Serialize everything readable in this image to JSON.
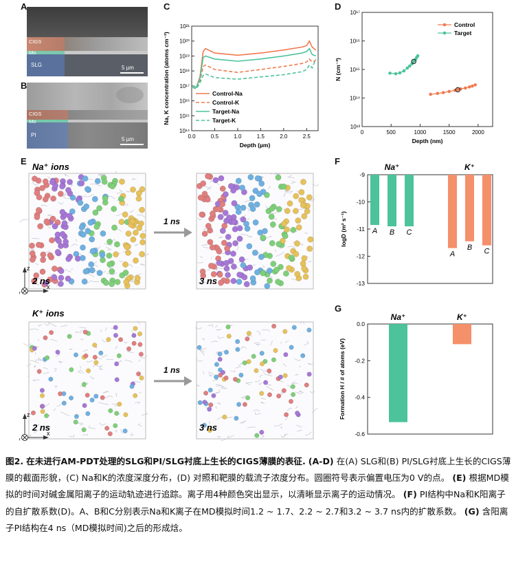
{
  "panels": {
    "A": {
      "label": "A",
      "layers": [
        "CIGS",
        "Mo",
        "SLG"
      ],
      "scale": "5 µm"
    },
    "B": {
      "label": "B",
      "layers": [
        "CIGS",
        "Mo",
        "PI"
      ],
      "scale": "5 µm"
    },
    "E": {
      "label": "E",
      "na_title": "Na⁺ ions",
      "k_title": "K⁺ ions",
      "arrow_label": "1 ns",
      "time_left": "2 ns",
      "time_right": "3 ns",
      "axis_z": "z",
      "axis_y": "y",
      "axis_x": "x"
    },
    "F": {
      "label": "F"
    },
    "G": {
      "label": "G"
    },
    "C": {
      "label": "C"
    },
    "D": {
      "label": "D"
    }
  },
  "chart_data": [
    {
      "id": "C",
      "type": "line",
      "xlabel": "Depth (µm)",
      "ylabel": "Na, K concentration (atoms cm⁻³)",
      "xlim": [
        0,
        2.75
      ],
      "ylim_log10": [
        14,
        21
      ],
      "xticks": [
        "0.0",
        "0.5",
        "1.0",
        "1.5",
        "2.0",
        "2.5"
      ],
      "yticks": [
        "10¹⁴",
        "10¹⁵",
        "10¹⁶",
        "10¹⁷",
        "10¹⁸",
        "10¹⁹",
        "10²⁰",
        "10²¹"
      ],
      "legend_position": "bottom-left",
      "series": [
        {
          "name": "Control-Na",
          "color": "#f07a4f",
          "dash": false,
          "x": [
            0.02,
            0.1,
            0.18,
            0.25,
            0.3,
            0.5,
            1.0,
            1.5,
            2.0,
            2.4,
            2.5,
            2.56,
            2.62,
            2.7
          ],
          "log10y": [
            17.0,
            16.9,
            17.6,
            19.3,
            19.5,
            19.2,
            19.05,
            19.2,
            19.4,
            19.6,
            19.7,
            20.0,
            19.6,
            19.4
          ]
        },
        {
          "name": "Control-K",
          "color": "#f07a4f",
          "dash": true,
          "x": [
            0.02,
            0.1,
            0.18,
            0.25,
            0.3,
            0.5,
            1.0,
            1.5,
            2.0,
            2.4,
            2.5,
            2.56,
            2.62,
            2.7
          ],
          "log10y": [
            16.9,
            16.8,
            17.3,
            18.3,
            18.4,
            18.1,
            17.9,
            18.1,
            18.3,
            18.5,
            18.6,
            18.8,
            18.6,
            18.7
          ]
        },
        {
          "name": "Target-Na",
          "color": "#4cc39a",
          "dash": false,
          "x": [
            0.02,
            0.1,
            0.18,
            0.25,
            0.3,
            0.5,
            1.0,
            1.5,
            2.0,
            2.4,
            2.5,
            2.56,
            2.62,
            2.7
          ],
          "log10y": [
            17.0,
            16.9,
            17.5,
            18.9,
            19.0,
            18.8,
            18.65,
            18.8,
            19.0,
            19.2,
            19.3,
            19.5,
            19.1,
            19.0
          ]
        },
        {
          "name": "Target-K",
          "color": "#4cc39a",
          "dash": true,
          "x": [
            0.02,
            0.1,
            0.18,
            0.25,
            0.3,
            0.5,
            1.0,
            1.5,
            2.0,
            2.4,
            2.5,
            2.56,
            2.62,
            2.7
          ],
          "log10y": [
            16.9,
            16.8,
            17.2,
            17.7,
            17.8,
            17.55,
            17.45,
            17.6,
            17.75,
            17.95,
            18.1,
            18.4,
            18.2,
            18.8
          ]
        }
      ]
    },
    {
      "id": "D",
      "type": "scatter",
      "xlabel": "Depth (nm)",
      "ylabel": "N (cm⁻³)",
      "xlim": [
        0,
        2250
      ],
      "ylim_log10": [
        13,
        17
      ],
      "xticks": [
        "0",
        "500",
        "1000",
        "1500",
        "2000"
      ],
      "yticks": [
        "10¹³",
        "10¹⁴",
        "10¹⁵",
        "10¹⁶",
        "10¹⁷"
      ],
      "legend_position": "top-right",
      "series": [
        {
          "name": "Control",
          "color": "#f07a4f",
          "x": [
            1180,
            1300,
            1400,
            1500,
            1600,
            1650,
            1700,
            1780,
            1850,
            1900,
            1950
          ],
          "log10y": [
            14.13,
            14.16,
            14.19,
            14.23,
            14.27,
            14.29,
            14.32,
            14.35,
            14.39,
            14.42,
            14.46
          ],
          "zero_bias_index": 5
        },
        {
          "name": "Target",
          "color": "#4cc39a",
          "x": [
            480,
            580,
            650,
            720,
            780,
            820,
            860,
            890,
            920,
            940,
            960
          ],
          "log10y": [
            14.87,
            14.85,
            14.88,
            14.95,
            15.05,
            15.12,
            15.2,
            15.28,
            15.35,
            15.42,
            15.48
          ],
          "zero_bias_index": 7
        }
      ]
    },
    {
      "id": "F",
      "type": "bar",
      "ylabel": "logD (m² s⁻¹)",
      "ylim": [
        -13,
        -9
      ],
      "yticks": [
        "-9",
        "-10",
        "-11",
        "-12",
        "-13"
      ],
      "groups": [
        "Na⁺",
        "K⁺"
      ],
      "series": [
        {
          "name": "Na⁺",
          "color": "#4cc39a",
          "categories": [
            "A",
            "B",
            "C"
          ],
          "values": [
            -10.85,
            -10.9,
            -10.9
          ]
        },
        {
          "name": "K⁺",
          "color": "#f4906a",
          "categories": [
            "A",
            "B",
            "C"
          ],
          "values": [
            -11.7,
            -11.45,
            -11.6
          ]
        }
      ]
    },
    {
      "id": "G",
      "type": "bar",
      "ylabel": "Formation H / # of atoms (eV)",
      "ylim": [
        -0.6,
        0.0
      ],
      "yticks": [
        "0.0",
        "-0.2",
        "-0.4",
        "-0.6"
      ],
      "categories": [
        "Na⁺",
        "K⁺"
      ],
      "values": [
        -0.535,
        -0.11
      ],
      "colors": [
        "#4cc39a",
        "#f4906a"
      ]
    }
  ],
  "caption": {
    "fig_label": "图2.",
    "title": "在未进行AM-PDT处理的SLG和PI/SLG衬底上生长的CIGS薄膜的表征.",
    "p1": "(A-D)",
    "t1": "在(A) SLG和(B) PI/SLG衬底上生长的CIGS薄膜的截面形貌，(C) Na和K的浓度深度分布，(D) 对照和靶膜的载流子浓度分布。圆圈符号表示偏置电压为0 V的点。",
    "p2": "(E)",
    "t2": "根据MD模拟的时间对碱金属阳离子的运动轨迹进行追踪。离子用4种颜色突出显示，以清晰显示离子的运动情况。",
    "p3": "(F)",
    "t3": "PI结构中Na和K阳离子的自扩散系数(D)。A、B和C分别表示Na和K离子在MD模拟时间1.2 ~ 1.7、2.2 ~ 2.7和3.2 ~ 3.7 ns内的扩散系数。",
    "p4": "(G)",
    "t4": "含阳离子PI结构在4 ns（MD模拟时间)之后的形成焓。"
  }
}
